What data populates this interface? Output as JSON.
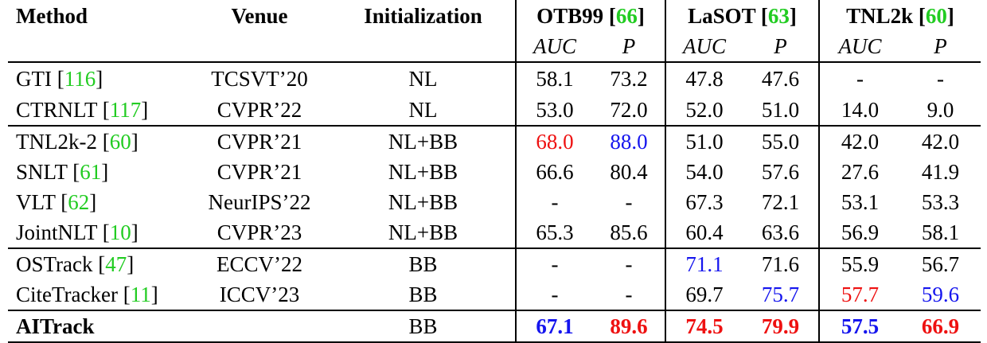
{
  "header": {
    "method": "Method",
    "venue": "Venue",
    "initialization": "Initialization",
    "datasets": [
      {
        "name": "OTB99",
        "ref": "66"
      },
      {
        "name": "LaSOT",
        "ref": "63"
      },
      {
        "name": "TNL2k",
        "ref": "60"
      }
    ],
    "metrics": [
      "AUC",
      "P",
      "AUC",
      "P",
      "AUC",
      "P"
    ]
  },
  "rows": [
    {
      "method": "GTI",
      "ref": "116",
      "venue": "TCSVT’20",
      "init": "NL",
      "values": [
        "58.1",
        "73.2",
        "47.8",
        "47.6",
        "-",
        "-"
      ]
    },
    {
      "method": "CTRNLT",
      "ref": "117",
      "venue": "CVPR’22",
      "init": "NL",
      "values": [
        "53.0",
        "72.0",
        "52.0",
        "51.0",
        "14.0",
        "9.0"
      ]
    },
    {
      "method": "TNL2k-2",
      "ref": "60",
      "venue": "CVPR’21",
      "init": "NL+BB",
      "values": [
        "68.0",
        "88.0",
        "51.0",
        "55.0",
        "42.0",
        "42.0"
      ]
    },
    {
      "method": "SNLT",
      "ref": "61",
      "venue": "CVPR’21",
      "init": "NL+BB",
      "values": [
        "66.6",
        "80.4",
        "54.0",
        "57.6",
        "27.6",
        "41.9"
      ]
    },
    {
      "method": "VLT",
      "ref": "62",
      "venue": "NeurIPS’22",
      "init": "NL+BB",
      "values": [
        "-",
        "-",
        "67.3",
        "72.1",
        "53.1",
        "53.3"
      ]
    },
    {
      "method": "JointNLT",
      "ref": "10",
      "venue": "CVPR’23",
      "init": "NL+BB",
      "values": [
        "65.3",
        "85.6",
        "60.4",
        "63.6",
        "56.9",
        "58.1"
      ]
    },
    {
      "method": "OSTrack",
      "ref": "47",
      "venue": "ECCV’22",
      "init": "BB",
      "values": [
        "-",
        "-",
        "71.1",
        "71.6",
        "55.9",
        "56.7"
      ]
    },
    {
      "method": "CiteTracker",
      "ref": "11",
      "venue": "ICCV’23",
      "init": "BB",
      "values": [
        "-",
        "-",
        "69.7",
        "75.7",
        "57.7",
        "59.6"
      ]
    },
    {
      "method": "AITrack",
      "ref": "",
      "venue": "",
      "init": "BB",
      "values": [
        "67.1",
        "89.6",
        "74.5",
        "79.9",
        "57.5",
        "66.9"
      ]
    }
  ],
  "colors": {
    "citation": "#22cc22",
    "best": "#ee1111",
    "second": "#1515ee"
  }
}
